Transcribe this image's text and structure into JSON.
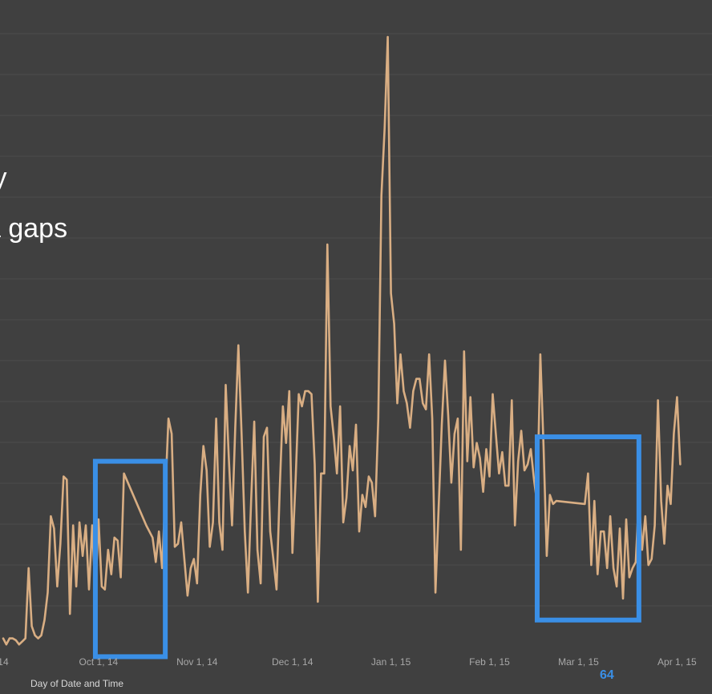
{
  "slide": {
    "overlay_line_1": "ty",
    "overlay_line_2": "a gaps",
    "page_number": "64"
  },
  "chart_data": {
    "type": "line",
    "title": "",
    "xlabel": "Day of Date and Time",
    "ylabel": "",
    "x_ticks": [
      "14",
      "Oct 1, 14",
      "Nov 1, 14",
      "Dec 1, 14",
      "Jan 1, 15",
      "Feb 1, 15",
      "Mar 1, 15",
      "Apr 1, 15"
    ],
    "x_tick_dates": [
      "2014-09-01",
      "2014-10-01",
      "2014-11-01",
      "2014-12-01",
      "2015-01-01",
      "2015-02-01",
      "2015-03-01",
      "2015-04-01"
    ],
    "x_range": [
      "2014-08-31",
      "2015-04-12"
    ],
    "ylim": [
      0,
      100
    ],
    "grid": "horizontal",
    "series": [
      {
        "color": "#d9ae83",
        "points": [
          [
            "2014-09-01",
            1.5
          ],
          [
            "2014-09-02",
            0.5
          ],
          [
            "2014-09-03",
            1.5
          ],
          [
            "2014-09-04",
            1.5
          ],
          [
            "2014-09-05",
            1.2
          ],
          [
            "2014-09-06",
            0.5
          ],
          [
            "2014-09-07",
            1.0
          ],
          [
            "2014-09-08",
            1.5
          ],
          [
            "2014-09-09",
            13.0
          ],
          [
            "2014-09-10",
            3.5
          ],
          [
            "2014-09-11",
            2.0
          ],
          [
            "2014-09-12",
            1.5
          ],
          [
            "2014-09-13",
            2.0
          ],
          [
            "2014-09-14",
            4.5
          ],
          [
            "2014-09-15",
            9.0
          ],
          [
            "2014-09-16",
            21.5
          ],
          [
            "2014-09-17",
            19.5
          ],
          [
            "2014-09-18",
            10.0
          ],
          [
            "2014-09-19",
            17.0
          ],
          [
            "2014-09-20",
            28.0
          ],
          [
            "2014-09-21",
            27.5
          ],
          [
            "2014-09-22",
            5.5
          ],
          [
            "2014-09-23",
            20.0
          ],
          [
            "2014-09-24",
            10.0
          ],
          [
            "2014-09-25",
            20.5
          ],
          [
            "2014-09-26",
            15.0
          ],
          [
            "2014-09-27",
            20.0
          ],
          [
            "2014-09-28",
            9.5
          ],
          [
            "2014-09-29",
            20.0
          ],
          [
            "2014-09-30",
            8.5
          ],
          [
            "2014-10-01",
            21.0
          ],
          [
            "2014-10-02",
            10.0
          ],
          [
            "2014-10-03",
            9.5
          ],
          [
            "2014-10-04",
            16.0
          ],
          [
            "2014-10-05",
            12.0
          ],
          [
            "2014-10-06",
            18.0
          ],
          [
            "2014-10-07",
            17.5
          ],
          [
            "2014-10-08",
            11.5
          ],
          [
            "2014-10-09",
            28.5
          ],
          [
            "2014-10-16",
            20.0
          ],
          [
            "2014-10-18",
            18.0
          ],
          [
            "2014-10-19",
            14.0
          ],
          [
            "2014-10-20",
            19.0
          ],
          [
            "2014-10-21",
            13.0
          ],
          [
            "2014-10-22",
            25.0
          ],
          [
            "2014-10-23",
            37.5
          ],
          [
            "2014-10-24",
            35.0
          ],
          [
            "2014-10-25",
            16.5
          ],
          [
            "2014-10-26",
            17.0
          ],
          [
            "2014-10-27",
            20.5
          ],
          [
            "2014-10-28",
            14.5
          ],
          [
            "2014-10-29",
            8.5
          ],
          [
            "2014-10-30",
            13.0
          ],
          [
            "2014-10-31",
            14.5
          ],
          [
            "2014-11-01",
            10.5
          ],
          [
            "2014-11-02",
            25.0
          ],
          [
            "2014-11-03",
            33.0
          ],
          [
            "2014-11-04",
            29.0
          ],
          [
            "2014-11-05",
            16.5
          ],
          [
            "2014-11-06",
            20.5
          ],
          [
            "2014-11-07",
            37.5
          ],
          [
            "2014-11-08",
            20.5
          ],
          [
            "2014-11-09",
            16.0
          ],
          [
            "2014-11-10",
            43.0
          ],
          [
            "2014-11-11",
            31.0
          ],
          [
            "2014-11-12",
            20.0
          ],
          [
            "2014-11-13",
            36.0
          ],
          [
            "2014-11-14",
            49.5
          ],
          [
            "2014-11-15",
            35.0
          ],
          [
            "2014-11-16",
            19.0
          ],
          [
            "2014-11-17",
            9.0
          ],
          [
            "2014-11-18",
            24.0
          ],
          [
            "2014-11-19",
            37.0
          ],
          [
            "2014-11-20",
            16.0
          ],
          [
            "2014-11-21",
            10.5
          ],
          [
            "2014-11-22",
            34.5
          ],
          [
            "2014-11-23",
            36.0
          ],
          [
            "2014-11-24",
            19.0
          ],
          [
            "2014-11-25",
            14.5
          ],
          [
            "2014-11-26",
            9.5
          ],
          [
            "2014-11-27",
            26.0
          ],
          [
            "2014-11-28",
            39.5
          ],
          [
            "2014-11-29",
            33.5
          ],
          [
            "2014-11-30",
            42.0
          ],
          [
            "2014-12-01",
            15.5
          ],
          [
            "2014-12-02",
            27.5
          ],
          [
            "2014-12-03",
            41.5
          ],
          [
            "2014-12-04",
            39.5
          ],
          [
            "2014-12-05",
            42.0
          ],
          [
            "2014-12-06",
            42.0
          ],
          [
            "2014-12-07",
            41.5
          ],
          [
            "2014-12-08",
            30.0
          ],
          [
            "2014-12-09",
            7.5
          ],
          [
            "2014-12-10",
            28.5
          ],
          [
            "2014-12-11",
            28.5
          ],
          [
            "2014-12-12",
            66.0
          ],
          [
            "2014-12-13",
            39.5
          ],
          [
            "2014-12-14",
            34.5
          ],
          [
            "2014-12-15",
            28.5
          ],
          [
            "2014-12-16",
            39.5
          ],
          [
            "2014-12-17",
            20.5
          ],
          [
            "2014-12-18",
            24.5
          ],
          [
            "2014-12-19",
            33.0
          ],
          [
            "2014-12-20",
            29.0
          ],
          [
            "2014-12-21",
            36.5
          ],
          [
            "2014-12-22",
            19.0
          ],
          [
            "2014-12-23",
            25.0
          ],
          [
            "2014-12-24",
            23.0
          ],
          [
            "2014-12-25",
            28.0
          ],
          [
            "2014-12-26",
            27.0
          ],
          [
            "2014-12-27",
            21.5
          ],
          [
            "2014-12-28",
            37.5
          ],
          [
            "2014-12-29",
            74.0
          ],
          [
            "2014-12-30",
            85.0
          ],
          [
            "2014-12-31",
            100.0
          ],
          [
            "2015-01-01",
            58.0
          ],
          [
            "2015-01-02",
            53.0
          ],
          [
            "2015-01-03",
            40.0
          ],
          [
            "2015-01-04",
            48.0
          ],
          [
            "2015-01-05",
            42.0
          ],
          [
            "2015-01-06",
            40.0
          ],
          [
            "2015-01-07",
            36.0
          ],
          [
            "2015-01-08",
            42.0
          ],
          [
            "2015-01-09",
            44.0
          ],
          [
            "2015-01-10",
            44.0
          ],
          [
            "2015-01-11",
            40.0
          ],
          [
            "2015-01-12",
            39.0
          ],
          [
            "2015-01-13",
            48.0
          ],
          [
            "2015-01-14",
            37.5
          ],
          [
            "2015-01-15",
            9.0
          ],
          [
            "2015-01-16",
            23.0
          ],
          [
            "2015-01-17",
            36.5
          ],
          [
            "2015-01-18",
            47.0
          ],
          [
            "2015-01-19",
            38.0
          ],
          [
            "2015-01-20",
            27.0
          ],
          [
            "2015-01-21",
            35.0
          ],
          [
            "2015-01-22",
            37.5
          ],
          [
            "2015-01-23",
            16.0
          ],
          [
            "2015-01-24",
            48.5
          ],
          [
            "2015-01-25",
            30.5
          ],
          [
            "2015-01-26",
            41.0
          ],
          [
            "2015-01-27",
            29.5
          ],
          [
            "2015-01-28",
            33.5
          ],
          [
            "2015-01-29",
            31.0
          ],
          [
            "2015-01-30",
            25.5
          ],
          [
            "2015-01-31",
            32.5
          ],
          [
            "2015-02-01",
            28.0
          ],
          [
            "2015-02-02",
            41.5
          ],
          [
            "2015-02-03",
            35.0
          ],
          [
            "2015-02-04",
            28.5
          ],
          [
            "2015-02-05",
            32.0
          ],
          [
            "2015-02-06",
            26.5
          ],
          [
            "2015-02-07",
            26.5
          ],
          [
            "2015-02-08",
            40.5
          ],
          [
            "2015-02-09",
            20.0
          ],
          [
            "2015-02-10",
            30.5
          ],
          [
            "2015-02-11",
            35.5
          ],
          [
            "2015-02-12",
            29.0
          ],
          [
            "2015-02-13",
            30.0
          ],
          [
            "2015-02-14",
            32.5
          ],
          [
            "2015-02-15",
            27.5
          ],
          [
            "2015-02-16",
            23.5
          ],
          [
            "2015-02-17",
            48.0
          ],
          [
            "2015-02-18",
            33.0
          ],
          [
            "2015-02-19",
            15.0
          ],
          [
            "2015-02-20",
            25.0
          ],
          [
            "2015-02-21",
            23.5
          ],
          [
            "2015-02-22",
            24.0
          ],
          [
            "2015-03-03",
            23.5
          ],
          [
            "2015-03-04",
            28.5
          ],
          [
            "2015-03-05",
            13.5
          ],
          [
            "2015-03-06",
            24.0
          ],
          [
            "2015-03-07",
            12.0
          ],
          [
            "2015-03-08",
            19.0
          ],
          [
            "2015-03-09",
            19.0
          ],
          [
            "2015-03-10",
            13.0
          ],
          [
            "2015-03-11",
            21.5
          ],
          [
            "2015-03-12",
            13.0
          ],
          [
            "2015-03-13",
            10.0
          ],
          [
            "2015-03-14",
            19.5
          ],
          [
            "2015-03-15",
            8.0
          ],
          [
            "2015-03-16",
            21.0
          ],
          [
            "2015-03-17",
            11.5
          ],
          [
            "2015-03-18",
            13.0
          ],
          [
            "2015-03-19",
            14.0
          ],
          [
            "2015-03-20",
            24.5
          ],
          [
            "2015-03-21",
            16.0
          ],
          [
            "2015-03-22",
            21.5
          ],
          [
            "2015-03-23",
            13.5
          ],
          [
            "2015-03-24",
            14.5
          ],
          [
            "2015-03-25",
            20.0
          ],
          [
            "2015-03-26",
            40.5
          ],
          [
            "2015-03-27",
            24.0
          ],
          [
            "2015-03-28",
            17.0
          ],
          [
            "2015-03-29",
            26.5
          ],
          [
            "2015-03-30",
            23.5
          ],
          [
            "2015-03-31",
            35.0
          ],
          [
            "2015-04-01",
            41.0
          ],
          [
            "2015-04-02",
            30.0
          ]
        ]
      }
    ],
    "annotations": [
      {
        "type": "box",
        "color": "#3a8fe6",
        "x": [
          "2014-09-30",
          "2014-10-22"
        ],
        "y": [
          -1.5,
          30.5
        ]
      },
      {
        "type": "box",
        "color": "#3a8fe6",
        "x": [
          "2015-02-16",
          "2015-03-20"
        ],
        "y": [
          4.5,
          34.5
        ]
      }
    ]
  }
}
